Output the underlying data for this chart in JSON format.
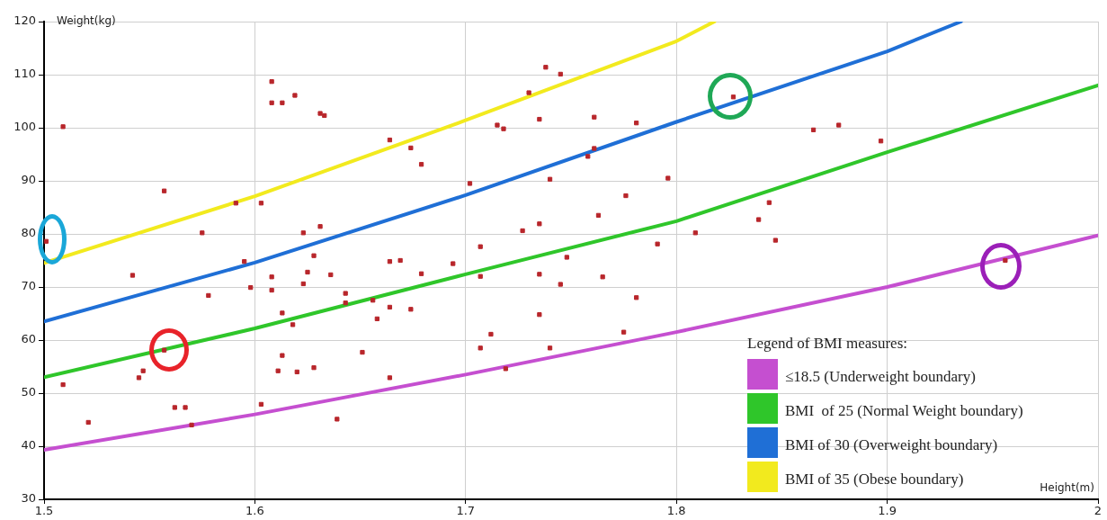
{
  "chart_data": {
    "type": "scatter",
    "xlabel": "Height(m)",
    "ylabel": "Weight(kg)",
    "legend_title": "Legend of BMI measures:",
    "legend": "bottom right",
    "grid": true,
    "xlim": [
      1.5,
      2
    ],
    "xticks": [
      1.5,
      1.6,
      1.7,
      1.8,
      1.9,
      2
    ],
    "ylim": [
      30,
      120
    ],
    "yticks": [
      30,
      40,
      50,
      60,
      70,
      80,
      90,
      100,
      110,
      120
    ],
    "series": [
      {
        "color": "#b8262b",
        "marker": "square",
        "x": [
          1.501,
          1.509,
          1.557,
          1.575,
          1.591,
          1.603,
          1.608,
          1.608,
          1.613,
          1.619,
          1.631,
          1.633,
          1.623,
          1.631,
          1.628,
          1.595,
          1.542,
          1.578,
          1.598,
          1.608,
          1.608,
          1.625,
          1.623,
          1.636,
          1.643,
          1.643,
          1.656,
          1.658,
          1.613,
          1.618,
          1.509,
          1.521,
          1.545,
          1.547,
          1.557,
          1.562,
          1.567,
          1.57,
          1.603,
          1.613,
          1.611,
          1.62,
          1.628,
          1.639,
          1.651,
          1.738,
          1.745,
          1.73,
          1.735,
          1.761,
          1.781,
          1.715,
          1.718,
          1.664,
          1.674,
          1.679,
          1.761,
          1.758,
          1.702,
          1.74,
          1.796,
          1.776,
          1.763,
          1.735,
          1.727,
          1.809,
          1.791,
          1.707,
          1.748,
          1.664,
          1.669,
          1.694,
          1.827,
          1.735,
          1.679,
          1.707,
          1.745,
          1.765,
          1.781,
          1.664,
          1.674,
          1.735,
          1.712,
          1.707,
          1.74,
          1.775,
          1.719,
          1.664,
          1.865,
          1.877,
          1.897,
          1.844,
          1.839,
          1.847,
          1.956
        ],
        "values": [
          78.6,
          100.2,
          88.1,
          80.2,
          85.8,
          85.8,
          108.7,
          104.7,
          104.7,
          106.1,
          102.7,
          102.3,
          80.2,
          81.4,
          75.9,
          74.8,
          72.2,
          68.4,
          69.9,
          71.9,
          69.4,
          72.8,
          70.6,
          72.3,
          68.8,
          67,
          67.5,
          64,
          65.1,
          62.9,
          51.6,
          44.5,
          52.9,
          54.2,
          58.1,
          47.3,
          47.3,
          44,
          47.9,
          57.1,
          54.2,
          54,
          54.8,
          45.1,
          57.7,
          111.4,
          110.1,
          106.6,
          101.6,
          102,
          100.9,
          100.5,
          99.8,
          97.7,
          96.2,
          93.1,
          96.1,
          94.6,
          89.5,
          90.3,
          90.5,
          87.2,
          83.5,
          81.9,
          80.6,
          80.2,
          78.1,
          77.6,
          75.6,
          74.8,
          75,
          74.4,
          105.8,
          72.4,
          72.5,
          72,
          70.5,
          71.9,
          68,
          66.2,
          65.8,
          64.8,
          61.1,
          58.5,
          58.5,
          61.5,
          54.6,
          52.9,
          99.6,
          100.5,
          97.5,
          85.9,
          82.7,
          78.8,
          75
        ]
      },
      {
        "type": "line",
        "name": "≤18.5 (Underweight boundary)",
        "color": "#c54fd0",
        "marker": "none",
        "line_style": "solid",
        "x": [
          1.5,
          1.6,
          1.7,
          1.8,
          1.9,
          2
        ],
        "values": [
          39.3,
          46,
          53.5,
          61.5,
          70,
          79.7
        ]
      },
      {
        "type": "line",
        "name": "BMI  of 25 (Normal Weight boundary)",
        "color": "#2fc62a",
        "marker": "none",
        "line_style": "solid",
        "x": [
          1.5,
          1.6,
          1.7,
          1.8,
          1.9,
          2
        ],
        "values": [
          53,
          62.2,
          72.4,
          82.4,
          95.4,
          108
        ]
      },
      {
        "type": "line",
        "name": "BMI of 30 (Overweight boundary)",
        "color": "#1f6fd6",
        "marker": "none",
        "line_style": "solid",
        "x": [
          1.5,
          1.6,
          1.7,
          1.8,
          1.9,
          1.935
        ],
        "values": [
          63.5,
          74.6,
          87.3,
          101.1,
          114.4,
          120
        ]
      },
      {
        "type": "line",
        "name": "BMI of 35 (Obese boundary)",
        "color": "#f2ea1e",
        "marker": "none",
        "line_style": "solid",
        "x": [
          1.5,
          1.6,
          1.7,
          1.8,
          1.818
        ],
        "values": [
          74.5,
          87.1,
          101.4,
          116.3,
          120
        ]
      }
    ]
  }
}
